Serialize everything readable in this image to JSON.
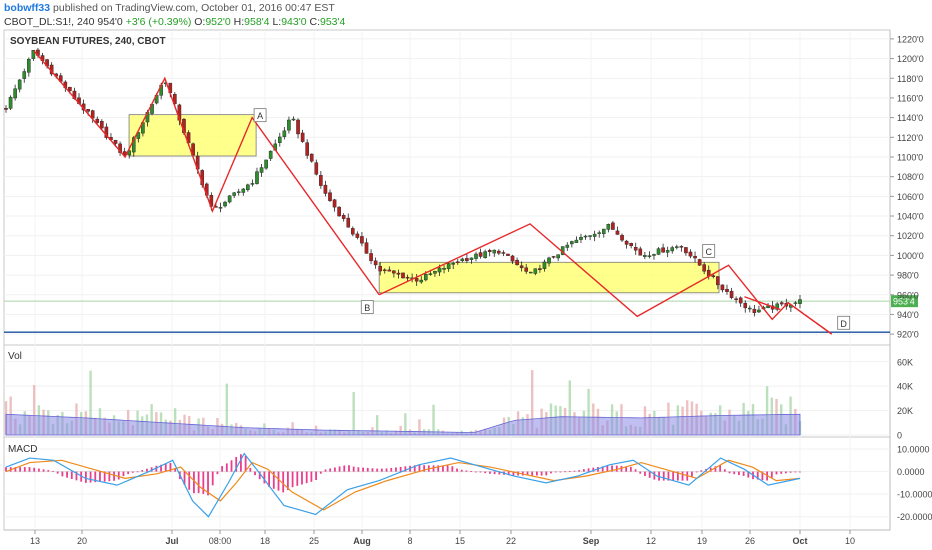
{
  "header": {
    "user": "bobwff33",
    "published_text": "published on TradingView.com, October 01, 2016 00:47 EST",
    "symbol_tf": "CBOT_DL:S1!, 240",
    "last": "954'0",
    "change": "+3'6 (+0.39%)",
    "o_label": "O:",
    "o_val": "952'0",
    "h_label": "H:",
    "h_val": "958'4",
    "l_label": "L:",
    "l_val": "943'0",
    "c_label": "C:",
    "c_val": "953'4"
  },
  "colors": {
    "up": "#2e8b2e",
    "down": "#b22222",
    "pattern": "#e8282a",
    "zone_fill": "#ffff66",
    "hline": "#1a4fa0",
    "volume_ma": "#8a8ae6",
    "macd": "#3aa0e8",
    "signal": "#f08a1a",
    "histogram": "#e83e8c",
    "price_tag": "#4caf50"
  },
  "chart_data": [
    {
      "type": "candlestick",
      "title": "SOYBEAN FUTURES, 240, CBOT",
      "x_ticks": [
        "13",
        "20",
        "Jul",
        "08:00",
        "18",
        "25",
        "Aug",
        "8",
        "15",
        "22",
        "Sep",
        "12",
        "19",
        "26",
        "Oct",
        "10"
      ],
      "y_ticks": [
        "1220'0",
        "1200'0",
        "1180'0",
        "1160'0",
        "1140'0",
        "1120'0",
        "1100'0",
        "1080'0",
        "1060'0",
        "1040'0",
        "1020'0",
        "1000'0",
        "980'0",
        "960'0",
        "940'0",
        "920'0"
      ],
      "ylim": [
        912,
        1227
      ],
      "last_price_label": "953'4",
      "last_price": 953.5,
      "path_prices": [
        [
          0,
          1150
        ],
        [
          0.035,
          1208
        ],
        [
          0.15,
          1100
        ],
        [
          0.2,
          1180
        ],
        [
          0.26,
          1045
        ],
        [
          0.31,
          1075
        ],
        [
          0.36,
          1140
        ],
        [
          0.4,
          1065
        ],
        [
          0.47,
          985
        ],
        [
          0.52,
          975
        ],
        [
          0.57,
          995
        ],
        [
          0.62,
          1005
        ],
        [
          0.66,
          980
        ],
        [
          0.71,
          1012
        ],
        [
          0.76,
          1030
        ],
        [
          0.8,
          1000
        ],
        [
          0.85,
          1010
        ],
        [
          0.9,
          968
        ],
        [
          0.94,
          943
        ],
        [
          0.97,
          948
        ],
        [
          1.0,
          953.5
        ]
      ],
      "pattern_lines": [
        [
          [
            0.035,
            1208
          ],
          [
            0.15,
            1100
          ],
          [
            0.2,
            1180
          ],
          [
            0.26,
            1045
          ],
          [
            0.31,
            1140
          ],
          [
            0.47,
            960
          ]
        ],
        [
          [
            0.47,
            960
          ],
          [
            0.66,
            1032
          ],
          [
            0.795,
            938
          ],
          [
            0.91,
            990
          ],
          [
            0.965,
            935
          ],
          [
            0.985,
            952
          ],
          [
            1.04,
            920
          ]
        ],
        [
          [
            0.93,
            958
          ],
          [
            0.975,
            945
          ]
        ]
      ],
      "pattern_dashed": [
        [
          0.985,
          952
        ],
        [
          1.04,
          920
        ]
      ],
      "zones": [
        {
          "x0": 0.155,
          "x1": 0.315,
          "y0": 1101,
          "y1": 1143
        },
        {
          "x0": 0.47,
          "x1": 0.898,
          "y0": 962,
          "y1": 993
        }
      ],
      "point_labels": [
        {
          "text": "A",
          "x": 0.32,
          "y": 1142
        },
        {
          "text": "B",
          "x": 0.455,
          "y": 947
        },
        {
          "text": "C",
          "x": 0.885,
          "y": 1004
        },
        {
          "text": "D",
          "x": 1.055,
          "y": 931
        }
      ],
      "horizontal_line": 922
    },
    {
      "type": "bar",
      "title": "Vol",
      "y_ticks": [
        "60K",
        "40K",
        "20K",
        "0"
      ],
      "ylim": [
        0,
        68
      ],
      "ma_profile": [
        [
          0,
          17
        ],
        [
          0.1,
          14
        ],
        [
          0.2,
          10
        ],
        [
          0.3,
          6
        ],
        [
          0.4,
          4
        ],
        [
          0.5,
          3
        ],
        [
          0.59,
          2
        ],
        [
          0.61,
          6
        ],
        [
          0.64,
          12
        ],
        [
          0.7,
          15
        ],
        [
          0.8,
          14
        ],
        [
          0.9,
          16
        ],
        [
          1.0,
          17
        ]
      ]
    },
    {
      "type": "line",
      "title": "MACD",
      "y_ticks": [
        "10.0000",
        "0.0000",
        "-10.0000",
        "-20.0000"
      ],
      "ylim": [
        -25,
        14
      ],
      "macd": [
        [
          0,
          2
        ],
        [
          0.03,
          6
        ],
        [
          0.06,
          5
        ],
        [
          0.1,
          -3
        ],
        [
          0.14,
          -6
        ],
        [
          0.18,
          0
        ],
        [
          0.21,
          5
        ],
        [
          0.235,
          -13
        ],
        [
          0.255,
          -20
        ],
        [
          0.28,
          -5
        ],
        [
          0.3,
          8
        ],
        [
          0.32,
          -1
        ],
        [
          0.35,
          -15
        ],
        [
          0.39,
          -19
        ],
        [
          0.43,
          -8
        ],
        [
          0.47,
          -4
        ],
        [
          0.52,
          3
        ],
        [
          0.56,
          6
        ],
        [
          0.6,
          2
        ],
        [
          0.64,
          -2
        ],
        [
          0.68,
          -5
        ],
        [
          0.72,
          -2
        ],
        [
          0.76,
          3
        ],
        [
          0.79,
          5
        ],
        [
          0.82,
          -2
        ],
        [
          0.86,
          -6
        ],
        [
          0.9,
          6
        ],
        [
          0.93,
          1
        ],
        [
          0.96,
          -6
        ],
        [
          1.0,
          -3
        ]
      ],
      "signal": [
        [
          0,
          0
        ],
        [
          0.03,
          4
        ],
        [
          0.07,
          5
        ],
        [
          0.11,
          1
        ],
        [
          0.15,
          -3
        ],
        [
          0.19,
          -1
        ],
        [
          0.22,
          2
        ],
        [
          0.245,
          -7
        ],
        [
          0.27,
          -13
        ],
        [
          0.29,
          -5
        ],
        [
          0.31,
          4
        ],
        [
          0.33,
          1
        ],
        [
          0.36,
          -9
        ],
        [
          0.4,
          -17
        ],
        [
          0.44,
          -9
        ],
        [
          0.48,
          -4
        ],
        [
          0.53,
          1
        ],
        [
          0.57,
          4
        ],
        [
          0.61,
          2
        ],
        [
          0.65,
          -1
        ],
        [
          0.69,
          -4
        ],
        [
          0.73,
          -2
        ],
        [
          0.77,
          1
        ],
        [
          0.8,
          4
        ],
        [
          0.83,
          1
        ],
        [
          0.87,
          -3
        ],
        [
          0.91,
          5
        ],
        [
          0.94,
          2
        ],
        [
          0.97,
          -4
        ],
        [
          1.0,
          -3
        ]
      ]
    }
  ]
}
